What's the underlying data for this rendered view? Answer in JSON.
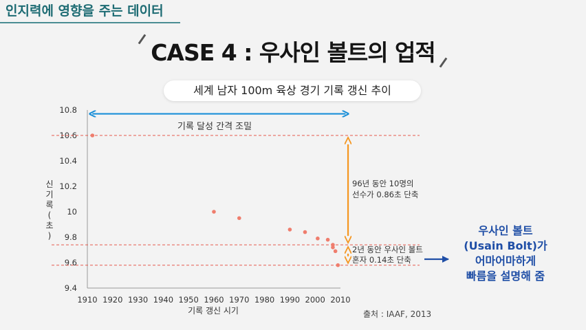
{
  "header": {
    "section": "인지력에 영향을 주는 데이터"
  },
  "title": "CASE 4 : 우사인 볼트의 업적",
  "subtitle": "세계 남자 100m 육상 경기 기록 갱신 추이",
  "chart_data": {
    "type": "scatter",
    "title": "세계 남자 100m 육상 경기 기록 갱신 추이",
    "xlabel": "기록 갱신 시기",
    "ylabel": "신기록 (초)",
    "xlim": [
      1910,
      2010
    ],
    "ylim": [
      9.4,
      10.8
    ],
    "xticks": [
      "1910",
      "1920",
      "1930",
      "1940",
      "1950",
      "1960",
      "1970",
      "1980",
      "1990",
      "2000",
      "2010"
    ],
    "yticks": [
      "9.4",
      "9.6",
      "9.8",
      "10",
      "10.2",
      "10.4",
      "10.6",
      "10.8"
    ],
    "x": [
      1912,
      1960,
      1970,
      1990,
      1996,
      2001,
      2005,
      2007,
      2007,
      2008,
      2009
    ],
    "y": [
      10.6,
      10.0,
      9.95,
      9.86,
      9.84,
      9.79,
      9.78,
      9.74,
      9.72,
      9.69,
      9.58
    ],
    "reference_lines": [
      10.6,
      9.74,
      9.58
    ],
    "annotations": {
      "span_label": "기록 달성 간격 조밀",
      "first_gap": [
        "96년 동안 10명의",
        "선수가 0.86초 단축"
      ],
      "second_gap": [
        "2년 동안 우사인 볼트",
        "혼자 0.14초 단축"
      ]
    },
    "source": "출처 : IAAF, 2013"
  },
  "callout": {
    "lines": [
      "우사인 볼트",
      "(Usain Bolt)가",
      "어마어마하게",
      "빠름을 설명해 줌"
    ]
  },
  "colors": {
    "teal": "#1d6b73",
    "span_arrow": "#1a8fd8",
    "gap_arrow": "#f5961f",
    "dots": "#ef7d6d",
    "dashed": "#e55a4e",
    "callout": "#1f4ea6"
  }
}
